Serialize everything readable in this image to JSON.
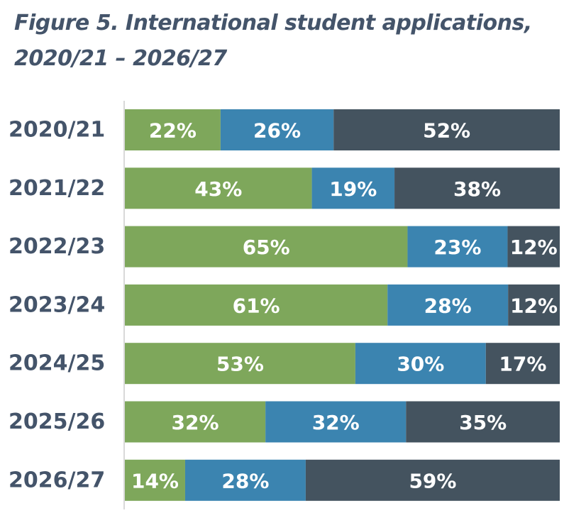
{
  "chart_data": {
    "type": "bar",
    "orientation": "horizontal",
    "stacked": true,
    "title_lines": [
      "Figure 5. International student applications,",
      "2020/21 – 2026/27"
    ],
    "categories": [
      "2020/21",
      "2021/22",
      "2022/23",
      "2023/24",
      "2024/25",
      "2025/26",
      "2026/27"
    ],
    "series": [
      {
        "color": "#7ea75b",
        "values": [
          22,
          43,
          65,
          61,
          53,
          32,
          14
        ],
        "labels": [
          "22%",
          "43%",
          "65%",
          "61%",
          "53%",
          "32%",
          "14%"
        ]
      },
      {
        "color": "#3b84b0",
        "values": [
          26,
          19,
          23,
          28,
          30,
          32,
          28
        ],
        "labels": [
          "26%",
          "19%",
          "23%",
          "28%",
          "30%",
          "32%",
          "28%"
        ]
      },
      {
        "color": "#44535f",
        "values": [
          52,
          38,
          12,
          12,
          17,
          35,
          59
        ],
        "labels": [
          "52%",
          "38%",
          "12%",
          "12%",
          "17%",
          "35%",
          "59%"
        ]
      }
    ],
    "xlim": [
      0,
      100
    ],
    "grid": false,
    "legend": "none",
    "axis_color": "#d9d9d9",
    "title_color": "#44546a"
  }
}
